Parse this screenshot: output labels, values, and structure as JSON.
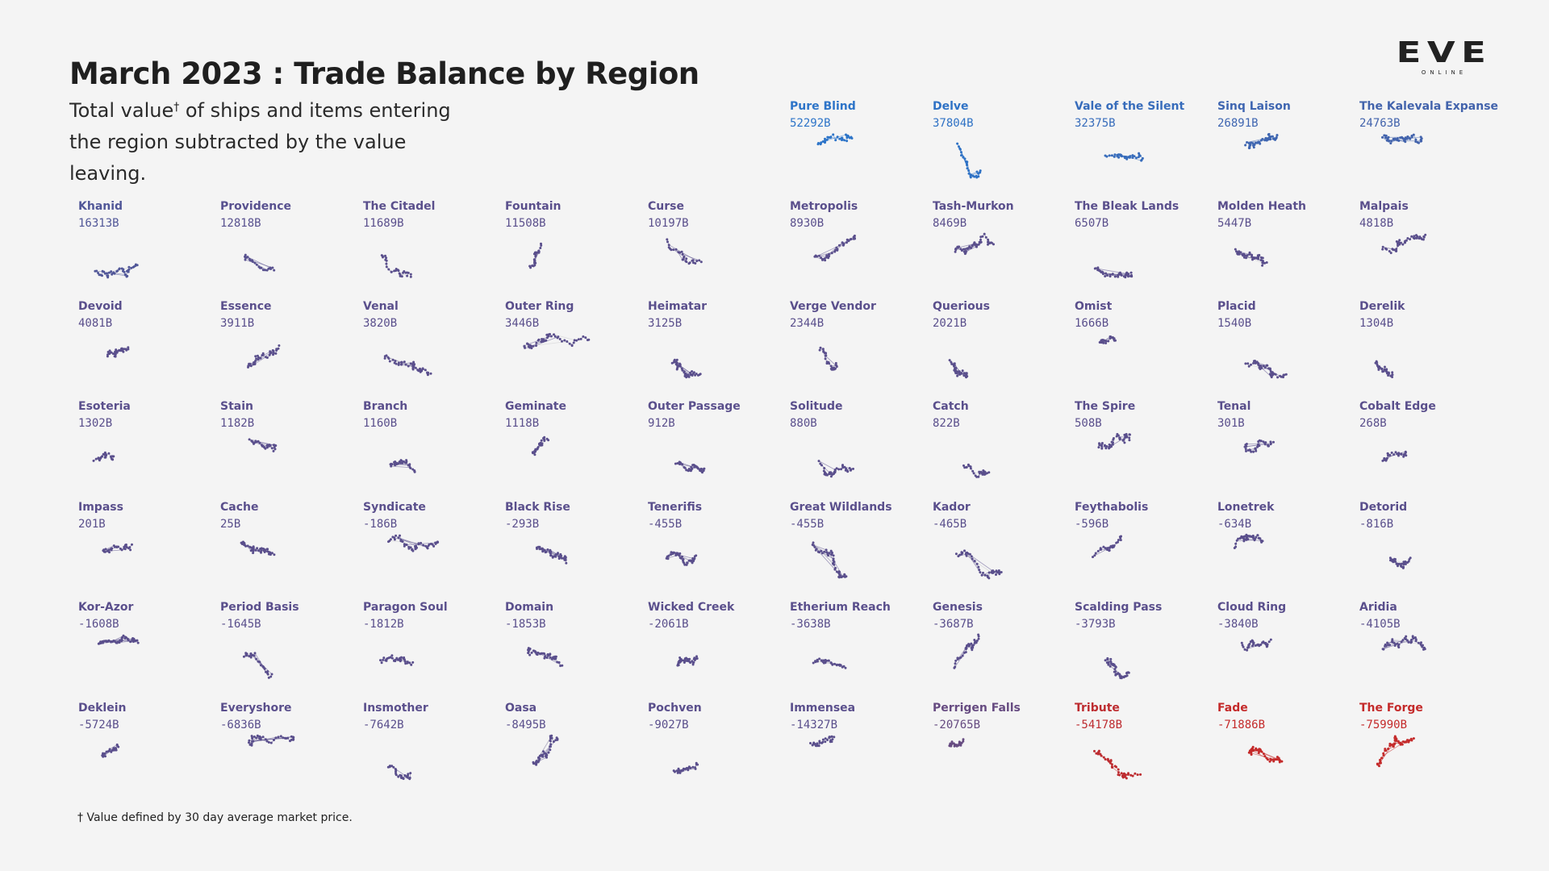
{
  "header": {
    "title": "March 2023 : Trade Balance by Region",
    "subtitle_line1": "Total value",
    "subtitle_dagger": "†",
    "subtitle_line1_rest": " of ships and items entering",
    "subtitle_line2": "the region subtracted by the value leaving."
  },
  "logo": {
    "main": "EVE",
    "sub": "ONLINE"
  },
  "footnote": "† Value defined by 30 day average market price.",
  "colors": {
    "positive_high": "#2d74c8",
    "neutral": "#5a4f8c",
    "negative_high": "#c42a2a",
    "edge": "#c8c8cc"
  },
  "chart_data": {
    "type": "small-multiples",
    "title": "March 2023 : Trade Balance by Region",
    "unit": "B",
    "regions": [
      {
        "name": "Pure Blind",
        "value": 52292,
        "label": "52292B"
      },
      {
        "name": "Delve",
        "value": 37804,
        "label": "37804B"
      },
      {
        "name": "Vale of the Silent",
        "value": 32375,
        "label": "32375B"
      },
      {
        "name": "Sinq Laison",
        "value": 26891,
        "label": "26891B"
      },
      {
        "name": "The Kalevala Expanse",
        "value": 24763,
        "label": "24763B"
      },
      {
        "name": "Khanid",
        "value": 16313,
        "label": "16313B"
      },
      {
        "name": "Providence",
        "value": 12818,
        "label": "12818B"
      },
      {
        "name": "The Citadel",
        "value": 11689,
        "label": "11689B"
      },
      {
        "name": "Fountain",
        "value": 11508,
        "label": "11508B"
      },
      {
        "name": "Curse",
        "value": 10197,
        "label": "10197B"
      },
      {
        "name": "Metropolis",
        "value": 8930,
        "label": "8930B"
      },
      {
        "name": "Tash-Murkon",
        "value": 8469,
        "label": "8469B"
      },
      {
        "name": "The Bleak Lands",
        "value": 6507,
        "label": "6507B"
      },
      {
        "name": "Molden Heath",
        "value": 5447,
        "label": "5447B"
      },
      {
        "name": "Malpais",
        "value": 4818,
        "label": "4818B"
      },
      {
        "name": "Devoid",
        "value": 4081,
        "label": "4081B"
      },
      {
        "name": "Essence",
        "value": 3911,
        "label": "3911B"
      },
      {
        "name": "Venal",
        "value": 3820,
        "label": "3820B"
      },
      {
        "name": "Outer Ring",
        "value": 3446,
        "label": "3446B"
      },
      {
        "name": "Heimatar",
        "value": 3125,
        "label": "3125B"
      },
      {
        "name": "Verge Vendor",
        "value": 2344,
        "label": "2344B"
      },
      {
        "name": "Querious",
        "value": 2021,
        "label": "2021B"
      },
      {
        "name": "Omist",
        "value": 1666,
        "label": "1666B"
      },
      {
        "name": "Placid",
        "value": 1540,
        "label": "1540B"
      },
      {
        "name": "Derelik",
        "value": 1304,
        "label": "1304B"
      },
      {
        "name": "Esoteria",
        "value": 1302,
        "label": "1302B"
      },
      {
        "name": "Stain",
        "value": 1182,
        "label": "1182B"
      },
      {
        "name": "Branch",
        "value": 1160,
        "label": "1160B"
      },
      {
        "name": "Geminate",
        "value": 1118,
        "label": "1118B"
      },
      {
        "name": "Outer Passage",
        "value": 912,
        "label": "912B"
      },
      {
        "name": "Solitude",
        "value": 880,
        "label": "880B"
      },
      {
        "name": "Catch",
        "value": 822,
        "label": "822B"
      },
      {
        "name": "The Spire",
        "value": 508,
        "label": "508B"
      },
      {
        "name": "Tenal",
        "value": 301,
        "label": "301B"
      },
      {
        "name": "Cobalt Edge",
        "value": 268,
        "label": "268B"
      },
      {
        "name": "Impass",
        "value": 201,
        "label": "201B"
      },
      {
        "name": "Cache",
        "value": 25,
        "label": "25B"
      },
      {
        "name": "Syndicate",
        "value": -186,
        "label": "-186B"
      },
      {
        "name": "Black Rise",
        "value": -293,
        "label": "-293B"
      },
      {
        "name": "Tenerifis",
        "value": -455,
        "label": "-455B"
      },
      {
        "name": "Great Wildlands",
        "value": -455,
        "label": "-455B"
      },
      {
        "name": "Kador",
        "value": -465,
        "label": "-465B"
      },
      {
        "name": "Feythabolis",
        "value": -596,
        "label": "-596B"
      },
      {
        "name": "Lonetrek",
        "value": -634,
        "label": "-634B"
      },
      {
        "name": "Detorid",
        "value": -816,
        "label": "-816B"
      },
      {
        "name": "Kor-Azor",
        "value": -1608,
        "label": "-1608B"
      },
      {
        "name": "Period Basis",
        "value": -1645,
        "label": "-1645B"
      },
      {
        "name": "Paragon Soul",
        "value": -1812,
        "label": "-1812B"
      },
      {
        "name": "Domain",
        "value": -1853,
        "label": "-1853B"
      },
      {
        "name": "Wicked Creek",
        "value": -2061,
        "label": "-2061B"
      },
      {
        "name": "Etherium Reach",
        "value": -3638,
        "label": "-3638B"
      },
      {
        "name": "Genesis",
        "value": -3687,
        "label": "-3687B"
      },
      {
        "name": "Scalding Pass",
        "value": -3793,
        "label": "-3793B"
      },
      {
        "name": "Cloud Ring",
        "value": -3840,
        "label": "-3840B"
      },
      {
        "name": "Aridia",
        "value": -4105,
        "label": "-4105B"
      },
      {
        "name": "Deklein",
        "value": -5724,
        "label": "-5724B"
      },
      {
        "name": "Everyshore",
        "value": -6836,
        "label": "-6836B"
      },
      {
        "name": "Insmother",
        "value": -7642,
        "label": "-7642B"
      },
      {
        "name": "Oasa",
        "value": -8495,
        "label": "-8495B"
      },
      {
        "name": "Pochven",
        "value": -9027,
        "label": "-9027B"
      },
      {
        "name": "Immensea",
        "value": -14327,
        "label": "-14327B"
      },
      {
        "name": "Perrigen Falls",
        "value": -20765,
        "label": "-20765B"
      },
      {
        "name": "Tribute",
        "value": -54178,
        "label": "-54178B"
      },
      {
        "name": "Fade",
        "value": -71886,
        "label": "-71886B"
      },
      {
        "name": "The Forge",
        "value": -75990,
        "label": "-75990B"
      }
    ]
  }
}
